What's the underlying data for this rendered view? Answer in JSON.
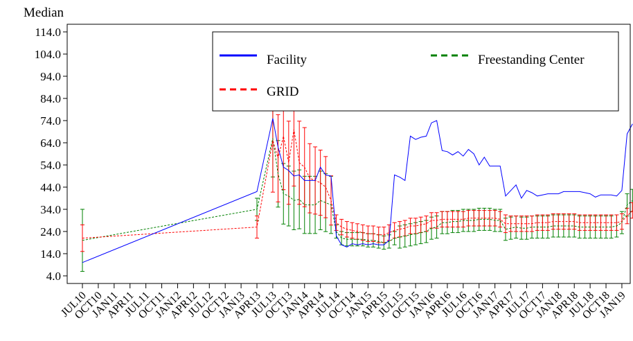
{
  "chart_data": {
    "type": "line",
    "ylabel": "Median",
    "ylim": [
      4.0,
      119.0
    ],
    "yticks": [
      4.0,
      14.0,
      24.0,
      34.0,
      44.0,
      54.0,
      64.0,
      74.0,
      84.0,
      94.0,
      104.0,
      114.0
    ],
    "ytick_labels": [
      "4.0",
      "14.0",
      "24.0",
      "34.0",
      "44.0",
      "54.0",
      "64.0",
      "74.0",
      "84.0",
      "94.0",
      "104.0",
      "114.0"
    ],
    "x_tick_labels": [
      "JUL10",
      "OCT10",
      "JAN11",
      "APR11",
      "JUL11",
      "OCT11",
      "JAN12",
      "APR12",
      "JUL12",
      "OCT12",
      "JAN13",
      "APR13",
      "JUL13",
      "OCT13",
      "JAN14",
      "APR14",
      "JUL14",
      "OCT14",
      "JAN15",
      "APR15",
      "JUL15",
      "OCT15",
      "JAN16",
      "APR16",
      "JUL16",
      "OCT16",
      "JAN17",
      "APR17",
      "JUL17",
      "OCT17",
      "JAN18",
      "APR18",
      "JUL18",
      "OCT18",
      "JAN19"
    ],
    "grid": false,
    "legend_placement": "top-right (inside plot)",
    "series": [
      {
        "name": "Facility",
        "color": "#0000ff",
        "style": "solid",
        "points": [
          [
            0,
            10.0
          ],
          [
            11,
            42.0
          ],
          [
            12,
            75.0
          ],
          [
            12.33,
            62.0
          ],
          [
            12.67,
            53.0
          ],
          [
            13,
            51.5
          ],
          [
            13.33,
            49.0
          ],
          [
            13.67,
            49.5
          ],
          [
            14,
            47.0
          ],
          [
            14.33,
            47.0
          ],
          [
            14.67,
            47.0
          ],
          [
            15,
            53.0
          ],
          [
            15.33,
            49.5
          ],
          [
            15.67,
            49.0
          ],
          [
            16,
            22.0
          ],
          [
            16.33,
            18.0
          ],
          [
            16.67,
            17.0
          ],
          [
            17,
            18.5
          ],
          [
            17.33,
            18.0
          ],
          [
            17.67,
            18.5
          ],
          [
            18,
            18.0
          ],
          [
            18.33,
            18.5
          ],
          [
            18.67,
            18.0
          ],
          [
            19,
            18.0
          ],
          [
            19.33,
            20.0
          ],
          [
            19.67,
            49.5
          ],
          [
            20,
            48.5
          ],
          [
            20.33,
            47.0
          ],
          [
            20.67,
            67.0
          ],
          [
            21,
            65.5
          ],
          [
            21.33,
            66.5
          ],
          [
            21.67,
            67.0
          ],
          [
            22,
            73.0
          ],
          [
            22.33,
            74.0
          ],
          [
            22.67,
            60.5
          ],
          [
            23,
            60.0
          ],
          [
            23.33,
            58.5
          ],
          [
            23.67,
            60.0
          ],
          [
            24,
            58.0
          ],
          [
            24.33,
            61.0
          ],
          [
            24.67,
            59.0
          ],
          [
            25,
            54.0
          ],
          [
            25.33,
            57.5
          ],
          [
            25.67,
            53.5
          ],
          [
            26,
            53.5
          ],
          [
            26.33,
            53.5
          ],
          [
            26.67,
            40.0
          ],
          [
            27,
            42.5
          ],
          [
            27.33,
            45.0
          ],
          [
            27.67,
            39.0
          ],
          [
            28,
            42.5
          ],
          [
            28.33,
            41.5
          ],
          [
            28.67,
            40.0
          ],
          [
            29,
            40.5
          ],
          [
            29.33,
            41.0
          ],
          [
            29.67,
            41.0
          ],
          [
            30,
            41.0
          ],
          [
            30.33,
            42.0
          ],
          [
            30.67,
            42.0
          ],
          [
            31,
            42.0
          ],
          [
            31.33,
            42.0
          ],
          [
            31.67,
            41.5
          ],
          [
            32,
            41.0
          ],
          [
            32.33,
            39.5
          ],
          [
            32.67,
            40.5
          ],
          [
            33,
            40.5
          ],
          [
            33.33,
            40.5
          ],
          [
            33.67,
            40.0
          ],
          [
            34,
            42.5
          ],
          [
            34.33,
            68.0
          ],
          [
            34.67,
            72.5
          ]
        ]
      },
      {
        "name": "Freestanding Center",
        "color": "#008000",
        "style": "dashed",
        "points": [
          [
            0,
            20.0
          ],
          [
            11,
            34.0
          ],
          [
            12,
            66.0
          ],
          [
            12.33,
            50.0
          ],
          [
            12.67,
            41.0
          ],
          [
            13,
            40.0
          ],
          [
            13.33,
            38.0
          ],
          [
            13.67,
            38.5
          ],
          [
            14,
            36.0
          ],
          [
            14.33,
            36.0
          ],
          [
            14.67,
            36.0
          ],
          [
            15,
            38.0
          ],
          [
            15.33,
            37.0
          ],
          [
            15.67,
            36.0
          ],
          [
            16,
            24.0
          ],
          [
            16.33,
            21.0
          ],
          [
            16.67,
            20.5
          ],
          [
            17,
            20.5
          ],
          [
            17.33,
            20.5
          ],
          [
            17.67,
            20.5
          ],
          [
            18,
            20.0
          ],
          [
            18.33,
            20.0
          ],
          [
            18.67,
            19.5
          ],
          [
            19,
            19.0
          ],
          [
            19.33,
            19.5
          ],
          [
            19.67,
            21.0
          ],
          [
            20,
            21.5
          ],
          [
            20.33,
            22.0
          ],
          [
            20.67,
            22.5
          ],
          [
            21,
            23.0
          ],
          [
            21.33,
            23.5
          ],
          [
            21.67,
            24.0
          ],
          [
            22,
            25.5
          ],
          [
            22.33,
            26.0
          ],
          [
            22.67,
            28.0
          ],
          [
            23,
            28.0
          ],
          [
            23.33,
            28.5
          ],
          [
            23.67,
            28.5
          ],
          [
            24,
            29.0
          ],
          [
            24.33,
            29.0
          ],
          [
            24.67,
            29.0
          ],
          [
            25,
            29.5
          ],
          [
            25.33,
            29.5
          ],
          [
            25.67,
            29.5
          ],
          [
            26,
            29.0
          ],
          [
            26.33,
            29.0
          ],
          [
            26.67,
            25.0
          ],
          [
            27,
            25.5
          ],
          [
            27.33,
            26.0
          ],
          [
            27.67,
            25.5
          ],
          [
            28,
            25.5
          ],
          [
            28.33,
            26.0
          ],
          [
            28.67,
            26.0
          ],
          [
            29,
            26.0
          ],
          [
            29.33,
            26.0
          ],
          [
            29.67,
            26.5
          ],
          [
            30,
            26.5
          ],
          [
            30.33,
            26.5
          ],
          [
            30.67,
            26.5
          ],
          [
            31,
            26.5
          ],
          [
            31.33,
            26.0
          ],
          [
            31.67,
            26.0
          ],
          [
            32,
            26.0
          ],
          [
            32.33,
            26.0
          ],
          [
            32.67,
            26.0
          ],
          [
            33,
            26.0
          ],
          [
            33.33,
            26.0
          ],
          [
            33.67,
            26.5
          ],
          [
            34,
            28.0
          ],
          [
            34.33,
            36.0
          ],
          [
            34.67,
            38.0
          ]
        ]
      },
      {
        "name": "GRID",
        "color": "#ff0000",
        "style": "dashed",
        "points": [
          [
            0,
            21.0
          ],
          [
            11,
            26.0
          ],
          [
            12,
            65.0
          ],
          [
            12.33,
            57.0
          ],
          [
            12.67,
            67.0
          ],
          [
            13,
            55.0
          ],
          [
            13.33,
            70.0
          ],
          [
            13.67,
            55.0
          ],
          [
            14,
            53.0
          ],
          [
            14.33,
            48.0
          ],
          [
            14.67,
            47.0
          ],
          [
            15,
            46.0
          ],
          [
            15.33,
            44.0
          ],
          [
            15.67,
            38.0
          ],
          [
            16,
            28.0
          ],
          [
            16.33,
            26.0
          ],
          [
            16.67,
            25.0
          ],
          [
            17,
            24.5
          ],
          [
            17.33,
            24.0
          ],
          [
            17.67,
            23.5
          ],
          [
            18,
            23.0
          ],
          [
            18.33,
            23.0
          ],
          [
            18.67,
            22.5
          ],
          [
            19,
            22.5
          ],
          [
            19.33,
            23.5
          ],
          [
            19.67,
            24.5
          ],
          [
            20,
            25.0
          ],
          [
            20.33,
            25.5
          ],
          [
            20.67,
            26.5
          ],
          [
            21,
            26.5
          ],
          [
            21.33,
            27.0
          ],
          [
            21.67,
            27.5
          ],
          [
            22,
            29.0
          ],
          [
            22.33,
            29.0
          ],
          [
            22.67,
            29.5
          ],
          [
            23,
            29.5
          ],
          [
            23.33,
            29.5
          ],
          [
            23.67,
            29.5
          ],
          [
            24,
            29.5
          ],
          [
            24.33,
            30.0
          ],
          [
            24.67,
            30.0
          ],
          [
            25,
            30.0
          ],
          [
            25.33,
            30.0
          ],
          [
            25.67,
            30.0
          ],
          [
            26,
            30.0
          ],
          [
            26.33,
            29.5
          ],
          [
            26.67,
            27.5
          ],
          [
            27,
            27.5
          ],
          [
            27.33,
            27.5
          ],
          [
            27.67,
            27.5
          ],
          [
            28,
            27.5
          ],
          [
            28.33,
            27.5
          ],
          [
            28.67,
            28.0
          ],
          [
            29,
            28.0
          ],
          [
            29.33,
            28.0
          ],
          [
            29.67,
            28.5
          ],
          [
            30,
            28.5
          ],
          [
            30.33,
            28.5
          ],
          [
            30.67,
            28.5
          ],
          [
            31,
            28.5
          ],
          [
            31.33,
            28.0
          ],
          [
            31.67,
            28.0
          ],
          [
            32,
            28.0
          ],
          [
            32.33,
            28.0
          ],
          [
            32.67,
            28.0
          ],
          [
            33,
            28.0
          ],
          [
            33.33,
            28.0
          ],
          [
            33.67,
            28.0
          ],
          [
            34,
            28.5
          ],
          [
            34.33,
            31.0
          ],
          [
            34.67,
            33.5
          ]
        ]
      }
    ]
  },
  "legend": {
    "facility": "Facility",
    "freestanding": "Freestanding Center",
    "grid": "GRID"
  },
  "colors": {
    "facility": "#0000ff",
    "freestanding": "#008000",
    "grid": "#ff0000",
    "axis": "#000000"
  }
}
